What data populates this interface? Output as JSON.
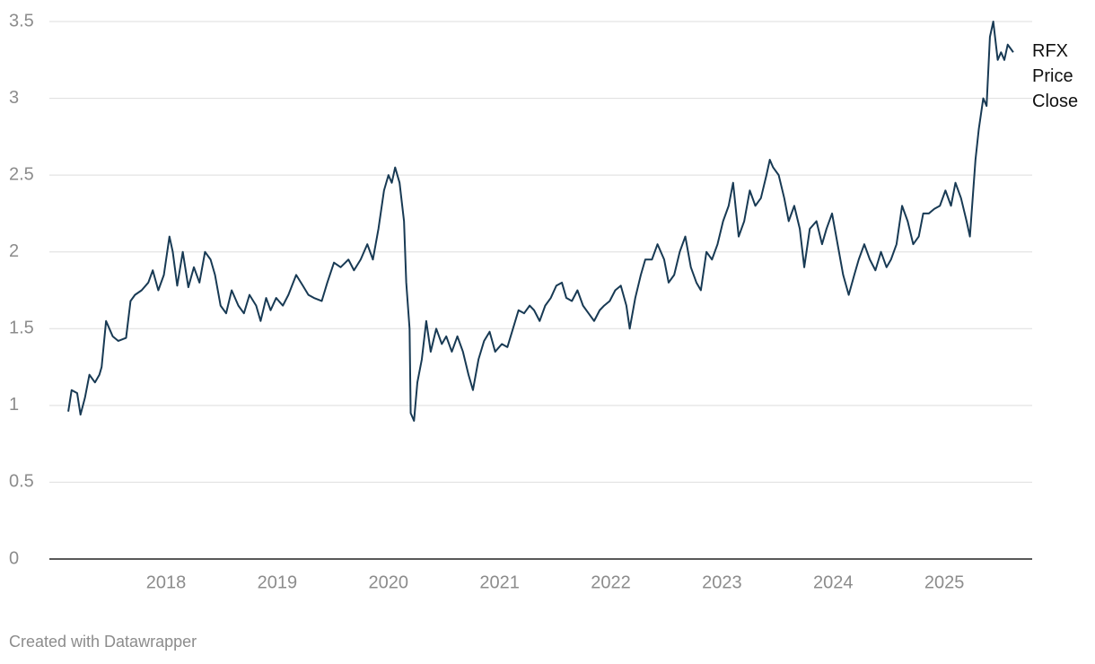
{
  "chart_data": {
    "type": "line",
    "x": [
      2017.12,
      2017.15,
      2017.2,
      2017.23,
      2017.27,
      2017.31,
      2017.36,
      2017.4,
      2017.42,
      2017.46,
      2017.49,
      2017.52,
      2017.57,
      2017.64,
      2017.68,
      2017.72,
      2017.78,
      2017.84,
      2017.88,
      2017.93,
      2017.98,
      2018.03,
      2018.06,
      2018.1,
      2018.15,
      2018.2,
      2018.25,
      2018.3,
      2018.35,
      2018.4,
      2018.44,
      2018.49,
      2018.54,
      2018.59,
      2018.65,
      2018.7,
      2018.75,
      2018.81,
      2018.85,
      2018.9,
      2018.94,
      2018.99,
      2019.05,
      2019.1,
      2019.17,
      2019.23,
      2019.28,
      2019.33,
      2019.4,
      2019.45,
      2019.51,
      2019.57,
      2019.64,
      2019.69,
      2019.75,
      2019.81,
      2019.86,
      2019.91,
      2019.96,
      2020.0,
      2020.03,
      2020.06,
      2020.1,
      2020.14,
      2020.16,
      2020.19,
      2020.2,
      2020.23,
      2020.26,
      2020.3,
      2020.34,
      2020.38,
      2020.43,
      2020.48,
      2020.52,
      2020.57,
      2020.62,
      2020.67,
      2020.72,
      2020.76,
      2020.81,
      2020.86,
      2020.91,
      2020.96,
      2021.02,
      2021.07,
      2021.12,
      2021.17,
      2021.22,
      2021.27,
      2021.31,
      2021.36,
      2021.41,
      2021.46,
      2021.51,
      2021.56,
      2021.6,
      2021.65,
      2021.7,
      2021.75,
      2021.8,
      2021.85,
      2021.9,
      2021.94,
      2021.99,
      2022.04,
      2022.09,
      2022.14,
      2022.17,
      2022.22,
      2022.27,
      2022.31,
      2022.37,
      2022.42,
      2022.48,
      2022.52,
      2022.57,
      2022.62,
      2022.67,
      2022.72,
      2022.77,
      2022.81,
      2022.86,
      2022.91,
      2022.96,
      2023.01,
      2023.06,
      2023.1,
      2023.15,
      2023.2,
      2023.25,
      2023.3,
      2023.35,
      2023.4,
      2023.43,
      2023.46,
      2023.51,
      2023.56,
      2023.6,
      2023.65,
      2023.7,
      2023.74,
      2023.79,
      2023.85,
      2023.9,
      2023.94,
      2023.99,
      2024.04,
      2024.09,
      2024.14,
      2024.19,
      2024.23,
      2024.28,
      2024.33,
      2024.38,
      2024.43,
      2024.48,
      2024.52,
      2024.57,
      2024.62,
      2024.67,
      2024.72,
      2024.77,
      2024.81,
      2024.86,
      2024.91,
      2024.96,
      2025.01,
      2025.06,
      2025.1,
      2025.15,
      2025.2,
      2025.23,
      2025.26,
      2025.28,
      2025.31,
      2025.35,
      2025.38,
      2025.41,
      2025.44,
      2025.48,
      2025.51,
      2025.54,
      2025.57,
      2025.62
    ],
    "series": [
      {
        "name": "RFX Price Close",
        "color": "#183a54",
        "values": [
          0.96,
          1.1,
          1.08,
          0.94,
          1.05,
          1.2,
          1.15,
          1.2,
          1.25,
          1.55,
          1.5,
          1.45,
          1.42,
          1.44,
          1.68,
          1.72,
          1.75,
          1.8,
          1.88,
          1.75,
          1.85,
          2.1,
          2.0,
          1.78,
          2.0,
          1.77,
          1.9,
          1.8,
          2.0,
          1.95,
          1.85,
          1.65,
          1.6,
          1.75,
          1.65,
          1.6,
          1.72,
          1.65,
          1.55,
          1.7,
          1.62,
          1.7,
          1.65,
          1.72,
          1.85,
          1.78,
          1.72,
          1.7,
          1.68,
          1.8,
          1.93,
          1.9,
          1.95,
          1.88,
          1.95,
          2.05,
          1.95,
          2.15,
          2.4,
          2.5,
          2.45,
          2.55,
          2.45,
          2.2,
          1.8,
          1.5,
          0.95,
          0.9,
          1.15,
          1.3,
          1.55,
          1.35,
          1.5,
          1.4,
          1.45,
          1.35,
          1.45,
          1.35,
          1.2,
          1.1,
          1.3,
          1.42,
          1.48,
          1.35,
          1.4,
          1.38,
          1.5,
          1.62,
          1.6,
          1.65,
          1.62,
          1.55,
          1.65,
          1.7,
          1.78,
          1.8,
          1.7,
          1.68,
          1.75,
          1.65,
          1.6,
          1.55,
          1.62,
          1.65,
          1.68,
          1.75,
          1.78,
          1.65,
          1.5,
          1.7,
          1.85,
          1.95,
          1.95,
          2.05,
          1.95,
          1.8,
          1.85,
          2.0,
          2.1,
          1.9,
          1.8,
          1.75,
          2.0,
          1.95,
          2.05,
          2.2,
          2.3,
          2.45,
          2.1,
          2.2,
          2.4,
          2.3,
          2.35,
          2.5,
          2.6,
          2.55,
          2.5,
          2.35,
          2.2,
          2.3,
          2.15,
          1.9,
          2.15,
          2.2,
          2.05,
          2.15,
          2.25,
          2.05,
          1.85,
          1.72,
          1.85,
          1.95,
          2.05,
          1.95,
          1.88,
          2.0,
          1.9,
          1.95,
          2.05,
          2.3,
          2.2,
          2.05,
          2.1,
          2.25,
          2.25,
          2.28,
          2.3,
          2.4,
          2.3,
          2.45,
          2.35,
          2.2,
          2.1,
          2.4,
          2.6,
          2.8,
          3.0,
          2.95,
          3.4,
          3.5,
          3.25,
          3.3,
          3.25,
          3.35,
          3.3
        ]
      }
    ],
    "xlim": [
      2016.95,
      2025.79
    ],
    "xticks": [
      2018,
      2019,
      2020,
      2021,
      2022,
      2023,
      2024,
      2025
    ],
    "ylim": [
      0,
      3.5
    ],
    "yticks": [
      0,
      0.5,
      1,
      1.5,
      2,
      2.5,
      3,
      3.5
    ],
    "grid": true,
    "footer": "Created with Datawrapper"
  }
}
